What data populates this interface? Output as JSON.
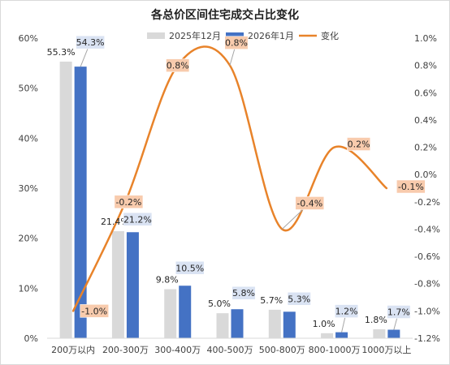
{
  "chart_data": {
    "type": "bar",
    "title": "各总价区间住宅成交占比变化",
    "categories": [
      "200万以内",
      "200-300万",
      "300-400万",
      "400-500万",
      "500-800万",
      "800-1000万",
      "1000万以上"
    ],
    "series": [
      {
        "name": "2025年12月",
        "type": "bar",
        "axis": "left",
        "color": "#d9d9d9",
        "values": [
          55.3,
          21.4,
          9.8,
          5.0,
          5.7,
          1.0,
          1.8
        ],
        "labels": [
          "55.3%",
          "21.4%",
          "9.8%",
          "5.0%",
          "5.7%",
          "1.0%",
          "1.8%"
        ]
      },
      {
        "name": "2026年1月",
        "type": "bar",
        "axis": "left",
        "color": "#4472c4",
        "values": [
          54.3,
          21.2,
          10.5,
          5.8,
          5.3,
          1.2,
          1.7
        ],
        "labels": [
          "54.3%",
          "21.2%",
          "10.5%",
          "5.8%",
          "5.3%",
          "1.2%",
          "1.7%"
        ]
      },
      {
        "name": "变化",
        "type": "line",
        "axis": "right",
        "color": "#e8832a",
        "values": [
          -1.0,
          -0.2,
          0.8,
          0.8,
          -0.4,
          0.2,
          -0.1
        ],
        "labels": [
          "-1.0%",
          "-0.2%",
          "0.8%",
          "0.8%",
          "-0.4%",
          "0.2%",
          "-0.1%"
        ]
      }
    ],
    "y_left": {
      "min": 0,
      "max": 60,
      "step": 10,
      "tick_labels": [
        "0%",
        "10%",
        "20%",
        "30%",
        "40%",
        "50%",
        "60%"
      ]
    },
    "y_right": {
      "min": -1.2,
      "max": 1.0,
      "step": 0.2,
      "tick_labels": [
        "-1.2%",
        "-1.0%",
        "-0.8%",
        "-0.6%",
        "-0.4%",
        "-0.2%",
        "0.0%",
        "0.2%",
        "0.4%",
        "0.6%",
        "0.8%",
        "1.0%"
      ]
    },
    "grid": false,
    "legend_position": "top"
  }
}
